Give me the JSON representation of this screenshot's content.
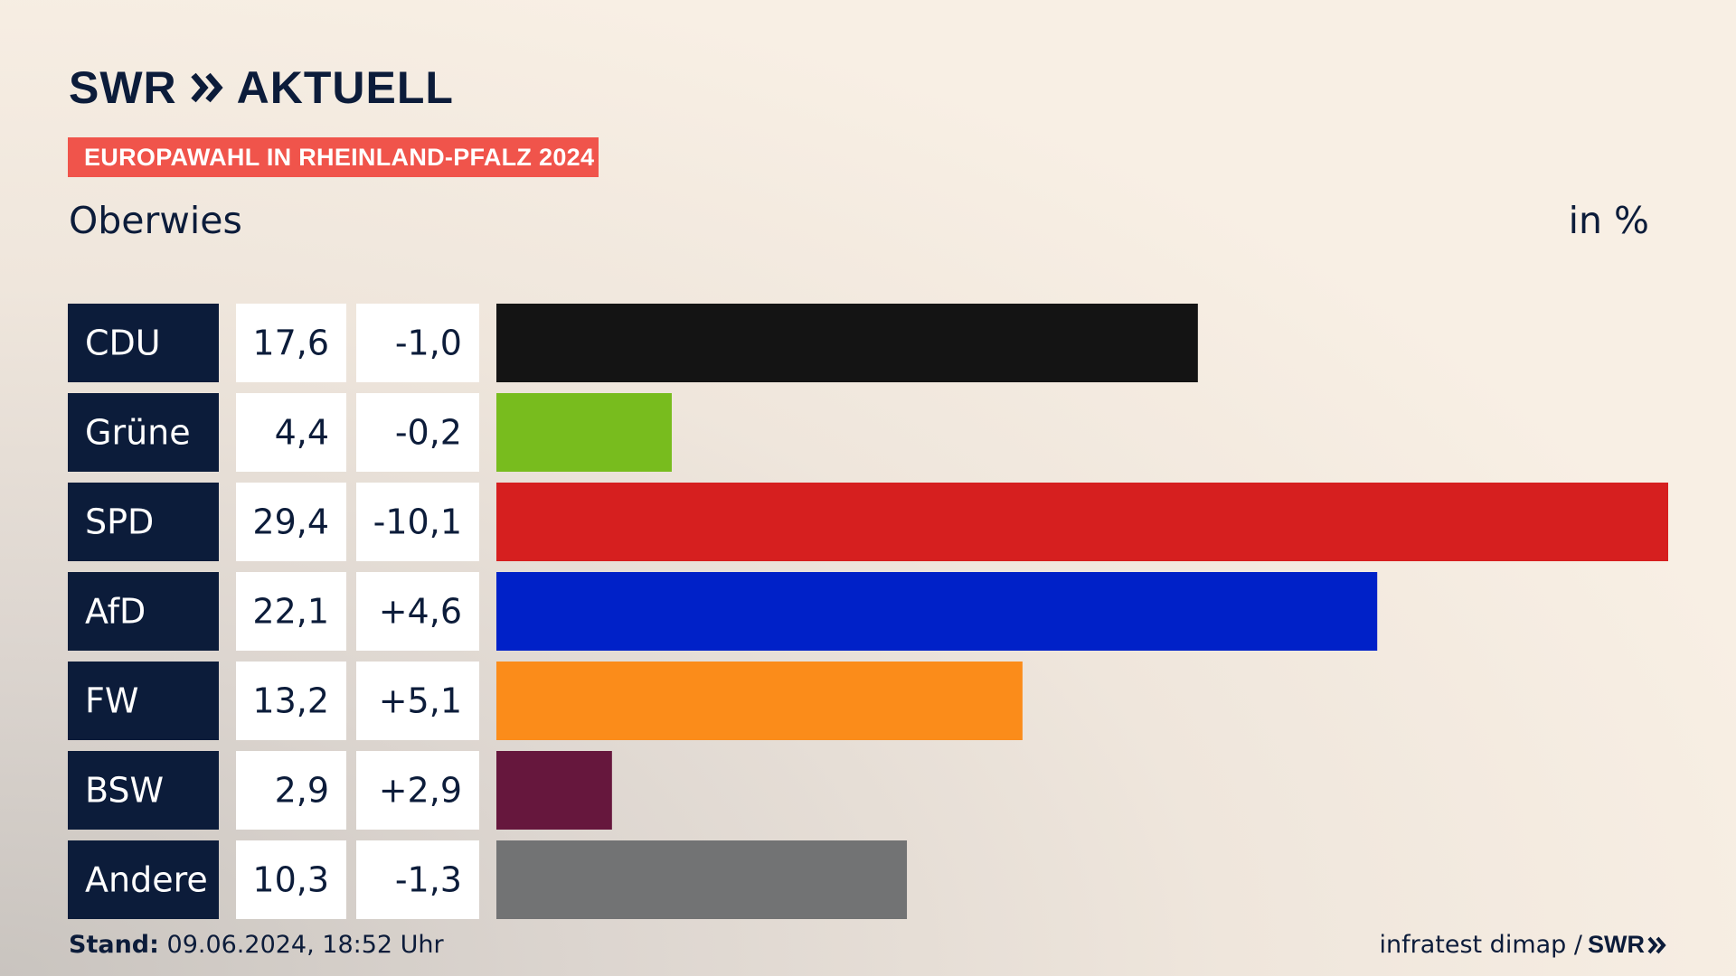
{
  "brand": {
    "logo_left": "SWR",
    "logo_right": "AKTUELL",
    "footer_logo": "SWR"
  },
  "badge": "EUROPAWAHL IN RHEINLAND-PFALZ 2024",
  "subtitle": "Oberwies",
  "unit": "in %",
  "footer": {
    "stand_label": "Stand:",
    "stand_value": "09.06.2024, 18:52 Uhr",
    "source": "infratest dimap /"
  },
  "colors": {
    "label_bg": "#0c1c3a",
    "badge": "#f0544b",
    "text": "#0c1c3a"
  },
  "chart_data": {
    "type": "bar",
    "orientation": "horizontal",
    "categories": [
      "CDU",
      "Grüne",
      "SPD",
      "AfD",
      "FW",
      "BSW",
      "Andere"
    ],
    "values": [
      17.6,
      4.4,
      29.4,
      22.1,
      13.2,
      2.9,
      10.3
    ],
    "values_text": [
      "17,6",
      "4,4",
      "29,4",
      "22,1",
      "13,2",
      "2,9",
      "10,3"
    ],
    "changes": [
      -1.0,
      -0.2,
      -10.1,
      4.6,
      5.1,
      2.9,
      -1.3
    ],
    "changes_text": [
      "-1,0",
      "-0,2",
      "-10,1",
      "+4,6",
      "+5,1",
      "+2,9",
      "-1,3"
    ],
    "bar_colors": [
      "#141414",
      "#78bc1e",
      "#d61f1f",
      "#0021c8",
      "#fb8c1a",
      "#66173d",
      "#727374"
    ],
    "xlim": [
      0,
      29.4
    ],
    "grid": false,
    "legend": "none"
  }
}
